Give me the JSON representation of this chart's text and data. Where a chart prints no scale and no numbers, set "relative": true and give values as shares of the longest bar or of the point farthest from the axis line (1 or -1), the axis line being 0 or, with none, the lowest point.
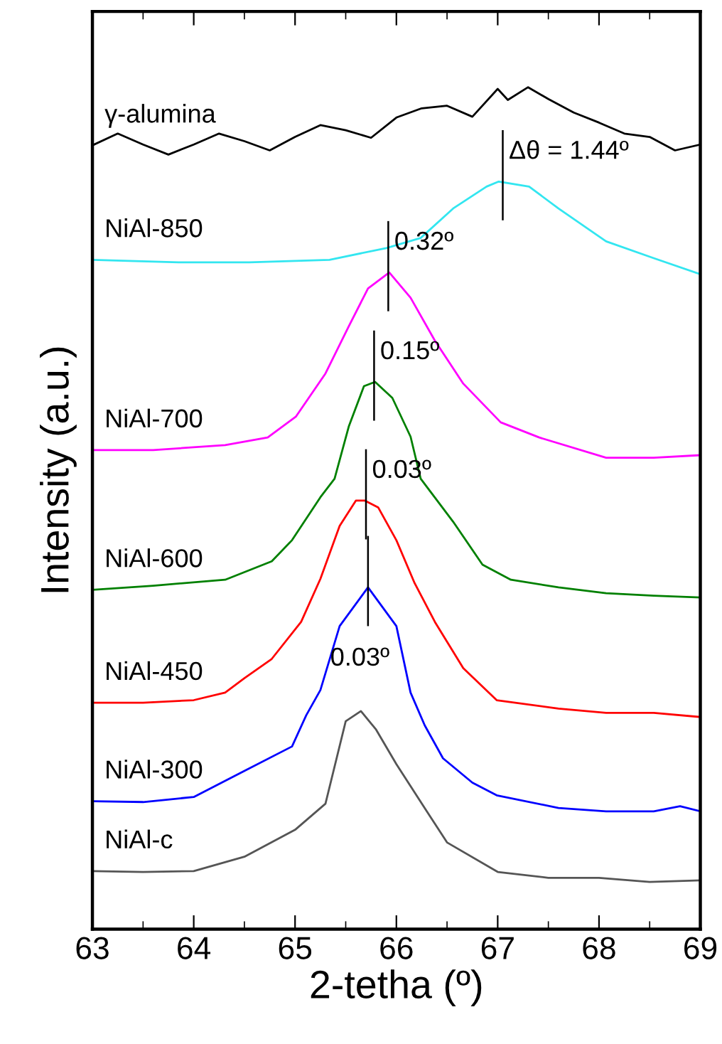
{
  "chart_data": {
    "type": "line",
    "relative": true,
    "xlabel": "2-tetha (º)",
    "ylabel": "Intensity (a.u.)",
    "xlim": [
      63,
      69
    ],
    "xticks": [
      63,
      64,
      65,
      66,
      67,
      68,
      69
    ],
    "grid": false,
    "legend": false,
    "marker": "none",
    "line_style": "solid",
    "series": [
      {
        "name": "γ-alumina",
        "color": "#000000",
        "x": [
          63,
          63.25,
          63.5,
          63.75,
          64,
          64.25,
          64.5,
          64.75,
          65,
          65.25,
          65.5,
          65.75,
          66,
          66.25,
          66.5,
          66.75,
          67,
          67.1,
          67.3,
          67.5,
          67.75,
          68,
          68.25,
          68.5,
          68.75,
          69
        ],
        "values": [
          0.931,
          0.945,
          0.932,
          0.92,
          0.932,
          0.945,
          0.936,
          0.925,
          0.941,
          0.955,
          0.949,
          0.94,
          0.964,
          0.975,
          0.978,
          0.965,
          0.998,
          0.985,
          1.0,
          0.986,
          0.97,
          0.958,
          0.945,
          0.941,
          0.925,
          0.932
        ]
      },
      {
        "name": "NiAl-850",
        "color": "#33e6f0",
        "x": [
          63,
          63.85,
          64.55,
          65.34,
          65.9,
          66.24,
          66.56,
          66.89,
          67.01,
          67.31,
          67.6,
          68.07,
          68.54,
          69
        ],
        "values": [
          0.795,
          0.792,
          0.792,
          0.795,
          0.809,
          0.821,
          0.856,
          0.882,
          0.888,
          0.882,
          0.856,
          0.817,
          0.797,
          0.778
        ]
      },
      {
        "name": "NiAl-700",
        "color": "#ff00ff",
        "x": [
          63,
          63.6,
          64.31,
          64.73,
          65.01,
          65.3,
          65.53,
          65.72,
          65.93,
          66.14,
          66.38,
          66.66,
          67.03,
          67.41,
          68.07,
          68.54,
          69
        ],
        "values": [
          0.569,
          0.569,
          0.575,
          0.584,
          0.609,
          0.66,
          0.716,
          0.761,
          0.78,
          0.75,
          0.699,
          0.648,
          0.602,
          0.584,
          0.56,
          0.56,
          0.563
        ]
      },
      {
        "name": "NiAl-600",
        "color": "#008000",
        "x": [
          63,
          63.6,
          64.31,
          64.77,
          64.97,
          65.25,
          65.39,
          65.53,
          65.68,
          65.79,
          65.96,
          66.14,
          66.24,
          66.56,
          66.85,
          67.13,
          67.6,
          68.07,
          68.54,
          69
        ],
        "values": [
          0.403,
          0.408,
          0.415,
          0.437,
          0.462,
          0.513,
          0.535,
          0.597,
          0.645,
          0.65,
          0.631,
          0.585,
          0.535,
          0.484,
          0.433,
          0.415,
          0.406,
          0.399,
          0.396,
          0.394
        ]
      },
      {
        "name": "NiAl-450",
        "color": "#ff0000",
        "x": [
          63,
          63.5,
          64,
          64.31,
          64.5,
          64.77,
          65.06,
          65.25,
          65.44,
          65.6,
          65.69,
          65.82,
          66,
          66.18,
          66.38,
          66.66,
          66.99,
          67.6,
          68.07,
          68.54,
          69
        ],
        "values": [
          0.269,
          0.269,
          0.272,
          0.281,
          0.298,
          0.321,
          0.365,
          0.416,
          0.479,
          0.509,
          0.509,
          0.501,
          0.462,
          0.411,
          0.365,
          0.31,
          0.272,
          0.262,
          0.257,
          0.257,
          0.252
        ]
      },
      {
        "name": "NiAl-300",
        "color": "#0000ff",
        "x": [
          63,
          63.5,
          64,
          64.5,
          64.97,
          65.11,
          65.25,
          65.44,
          65.72,
          66,
          66.14,
          66.28,
          66.46,
          66.75,
          66.99,
          67.6,
          68.07,
          68.54,
          68.8,
          69
        ],
        "values": [
          0.152,
          0.151,
          0.157,
          0.188,
          0.217,
          0.254,
          0.284,
          0.36,
          0.406,
          0.36,
          0.281,
          0.242,
          0.203,
          0.174,
          0.159,
          0.144,
          0.14,
          0.14,
          0.146,
          0.14
        ]
      },
      {
        "name": "NiAl-c",
        "color": "#555555",
        "x": [
          63,
          63.5,
          64,
          64.5,
          65,
          65.3,
          65.5,
          65.65,
          65.8,
          66,
          66.3,
          66.5,
          67,
          67.5,
          68,
          68.5,
          69
        ],
        "values": [
          0.069,
          0.068,
          0.069,
          0.086,
          0.118,
          0.149,
          0.247,
          0.259,
          0.237,
          0.196,
          0.14,
          0.103,
          0.068,
          0.061,
          0.061,
          0.056,
          0.058
        ]
      }
    ],
    "annotations": [
      {
        "text": "Δθ = 1.44º",
        "x": 67.05,
        "y": 0.888
      },
      {
        "text": "0.32º",
        "x": 65.92,
        "y": 0.78
      },
      {
        "text": "0.15º",
        "x": 65.78,
        "y": 0.65
      },
      {
        "text": "0.03º",
        "x": 65.7,
        "y": 0.509
      },
      {
        "text": "0.03º",
        "x": 65.72,
        "y": 0.406
      }
    ]
  }
}
